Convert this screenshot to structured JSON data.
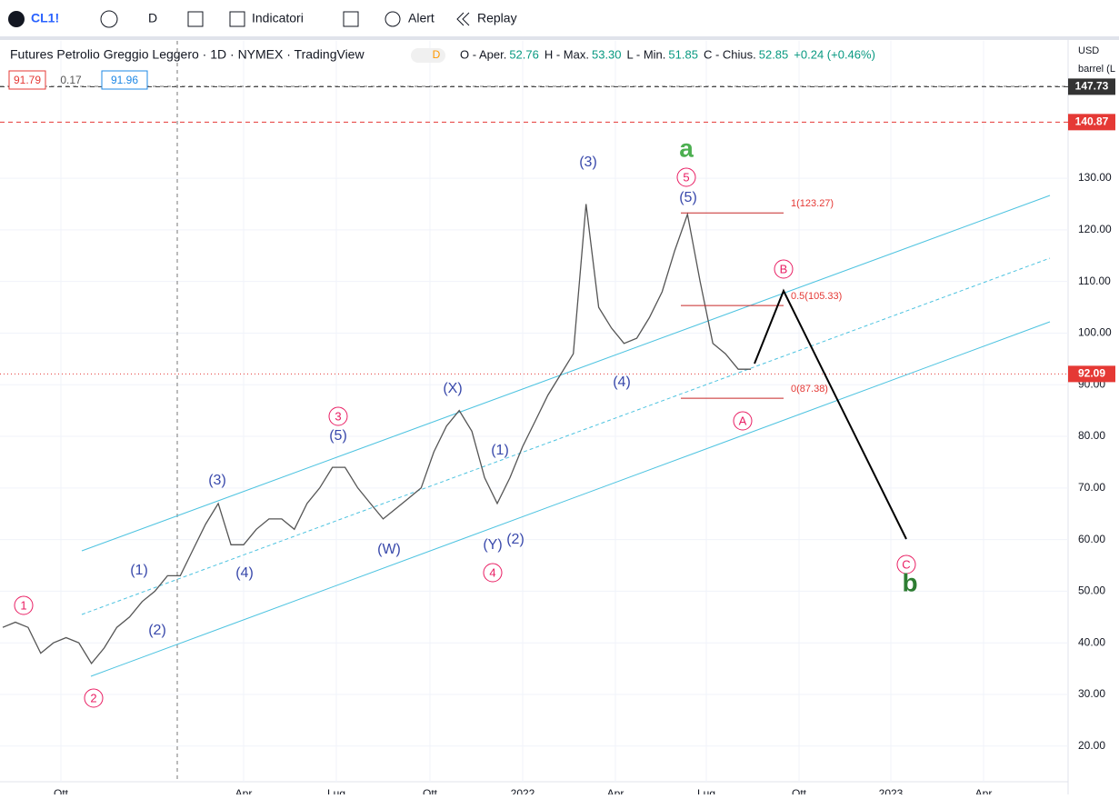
{
  "toolbar": {
    "symbol": "CL1!",
    "interval": "D",
    "indicators": "Indicatori",
    "alert": "Alert",
    "replay": "Replay"
  },
  "legend": {
    "title": "Futures Petrolio Greggio Leggero · 1D · NYMEX · TradingView",
    "badge": "D",
    "ohlc": [
      [
        "O - Aper.",
        "52.76"
      ],
      [
        "H - Max.",
        "53.30"
      ],
      [
        "L - Min.",
        "51.85"
      ],
      [
        "C - Chius.",
        "52.85"
      ]
    ],
    "change": "+0.24 (+0.46%)",
    "indicator": [
      "91.79",
      "0.17",
      "91.96"
    ]
  },
  "chart_data": {
    "type": "line",
    "series": [
      {
        "name": "CL1!",
        "color": "#555555",
        "values": [
          43,
          44,
          43,
          38,
          40,
          41,
          40,
          36,
          39,
          43,
          45,
          48,
          50,
          53,
          53,
          58,
          63,
          67,
          59,
          59,
          62,
          64,
          64,
          62,
          67,
          70,
          74,
          74,
          70,
          67,
          64,
          66,
          68,
          70,
          77,
          82,
          85,
          81,
          72,
          67,
          72,
          78,
          83,
          88,
          92,
          96,
          125,
          105,
          101,
          98,
          99,
          103,
          108,
          116,
          123,
          110,
          98,
          96,
          93,
          93
        ]
      }
    ],
    "currency": "USD",
    "unit": "barrel (L",
    "ylim": [
      13.1,
      156.6
    ],
    "yticks": [
      {
        "value": 20,
        "label": "20.00"
      },
      {
        "value": 30,
        "label": "30.00"
      },
      {
        "value": 40,
        "label": "40.00"
      },
      {
        "value": 50,
        "label": "50.00"
      },
      {
        "value": 60,
        "label": "60.00"
      },
      {
        "value": 70,
        "label": "70.00"
      },
      {
        "value": 80,
        "label": "80.00"
      },
      {
        "value": 90,
        "label": "90.00"
      },
      {
        "value": 100,
        "label": "100.00"
      },
      {
        "value": 110,
        "label": "110.00"
      },
      {
        "value": 120,
        "label": "120.00"
      },
      {
        "value": 130,
        "label": "130.00"
      }
    ],
    "xlabels": [
      "Ott",
      "Apr",
      "Lug",
      "Ott",
      "2022",
      "Apr",
      "Lug",
      "Ott",
      "2023",
      "Apr"
    ],
    "price_lines": [
      {
        "value": 147.73,
        "color": "#333333"
      },
      {
        "value": 140.87,
        "color": "#e53935"
      },
      {
        "value": 92.09,
        "color": "#e53935"
      }
    ],
    "fib": [
      {
        "value": 123.27,
        "label": "1(123.27)"
      },
      {
        "value": 105.33,
        "label": "0.5(105.33)"
      },
      {
        "value": 87.38,
        "label": "0(87.38)"
      }
    ],
    "waves_pink": [
      "1",
      "2",
      "3",
      "4",
      "5",
      "A",
      "B",
      "C"
    ],
    "waves_blue": [
      "(1)",
      "(2)",
      "(3)",
      "(4)",
      "(5)",
      "(W)",
      "(X)",
      "(Y)",
      "(2)",
      "(1)",
      "(3)",
      "(4)",
      "(5)"
    ],
    "waves_green": [
      "a",
      "b"
    ],
    "grid": true
  }
}
